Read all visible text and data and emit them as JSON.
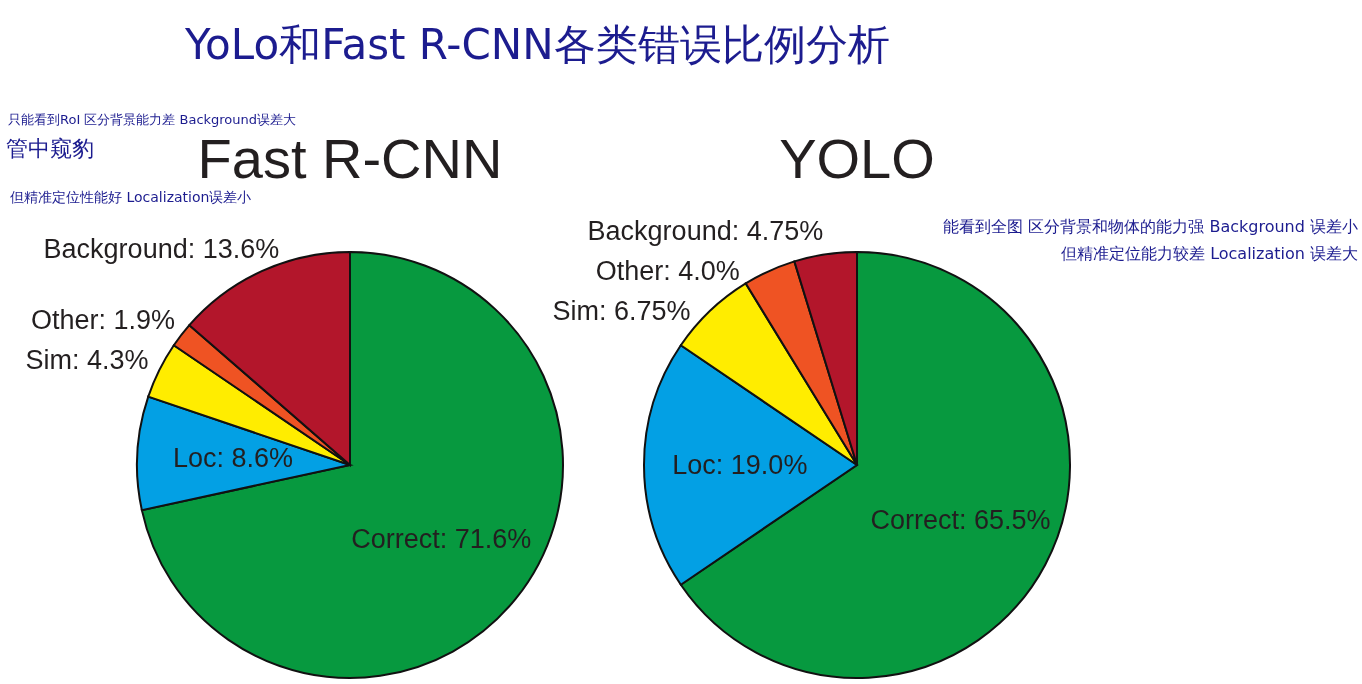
{
  "chart_data": [
    {
      "type": "pie",
      "title": "Fast R-CNN",
      "categories": [
        "Correct",
        "Loc",
        "Sim",
        "Other",
        "Background"
      ],
      "values": [
        71.6,
        8.6,
        4.3,
        1.9,
        13.6
      ],
      "value_labels": [
        "71.6%",
        "8.6%",
        "4.3%",
        "1.9%",
        "13.6%"
      ],
      "colors": [
        "#07993f",
        "#03a0e4",
        "#ffed00",
        "#ef5323",
        "#b3162b"
      ],
      "annotations": [
        "YoLo和Fast R-CNN各类错误比例分析",
        "只能看到RoI 区分背景能力差 Background误差大",
        "管中窥豹",
        "但精准定位性能好 Localization误差小"
      ]
    },
    {
      "type": "pie",
      "title": "YOLO",
      "categories": [
        "Correct",
        "Loc",
        "Sim",
        "Other",
        "Background"
      ],
      "values": [
        65.5,
        19.0,
        6.75,
        4.0,
        4.75
      ],
      "value_labels": [
        "65.5%",
        "19.0%",
        "6.75%",
        "4.0%",
        "4.75%"
      ],
      "colors": [
        "#07993f",
        "#03a0e4",
        "#ffed00",
        "#ef5323",
        "#b3162b"
      ],
      "annotations": [
        "能看到全图 区分背景和物体的能力强 Background 误差小",
        "但精准定位能力较差 Localization 误差大"
      ]
    }
  ]
}
